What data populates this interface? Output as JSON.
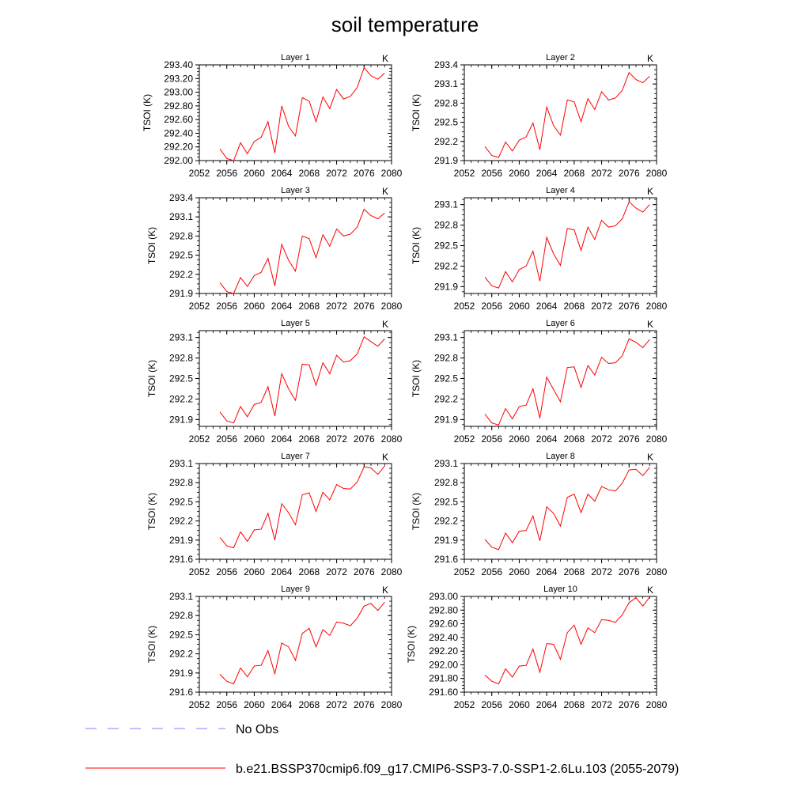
{
  "chart_data": {
    "type": "line",
    "title": "soil temperature",
    "x": [
      2055,
      2056,
      2057,
      2058,
      2059,
      2060,
      2061,
      2062,
      2063,
      2064,
      2065,
      2066,
      2067,
      2068,
      2069,
      2070,
      2071,
      2072,
      2073,
      2074,
      2075,
      2076,
      2077,
      2078,
      2079
    ],
    "xticks": [
      "2052",
      "2056",
      "2060",
      "2064",
      "2068",
      "2072",
      "2076",
      "2080"
    ],
    "xlim": [
      2052,
      2080
    ],
    "ylabel": "TSOI  (K)",
    "units": "K",
    "line_color": "#ff0000",
    "panels": [
      {
        "title": "Layer 1",
        "ylim": [
          292.0,
          293.4
        ],
        "yticks": [
          "292.00",
          "292.20",
          "292.40",
          "292.60",
          "292.80",
          "293.00",
          "293.20",
          "293.40"
        ],
        "values": [
          292.17,
          292.03,
          292.0,
          292.26,
          292.1,
          292.28,
          292.34,
          292.57,
          292.11,
          292.8,
          292.5,
          292.36,
          292.92,
          292.87,
          292.57,
          292.93,
          292.76,
          293.04,
          292.9,
          292.94,
          293.07,
          293.36,
          293.24,
          293.19,
          293.28
        ]
      },
      {
        "title": "Layer 2",
        "ylim": [
          291.9,
          293.4
        ],
        "yticks": [
          "291.9",
          "292.2",
          "292.5",
          "292.8",
          "293.1",
          "293.4"
        ],
        "values": [
          292.12,
          291.98,
          291.95,
          292.19,
          292.05,
          292.22,
          292.27,
          292.49,
          292.07,
          292.74,
          292.45,
          292.3,
          292.85,
          292.82,
          292.51,
          292.87,
          292.7,
          292.98,
          292.85,
          292.88,
          293.0,
          293.28,
          293.17,
          293.12,
          293.22
        ]
      },
      {
        "title": "Layer 3",
        "ylim": [
          291.9,
          293.4
        ],
        "yticks": [
          "291.9",
          "292.2",
          "292.5",
          "292.8",
          "293.1",
          "293.4"
        ],
        "values": [
          292.07,
          291.93,
          291.9,
          292.15,
          292.01,
          292.18,
          292.23,
          292.45,
          292.02,
          292.67,
          292.42,
          292.25,
          292.8,
          292.76,
          292.46,
          292.82,
          292.64,
          292.91,
          292.8,
          292.83,
          292.94,
          293.22,
          293.12,
          293.07,
          293.16
        ]
      },
      {
        "title": "Layer 4",
        "ylim": [
          291.8,
          293.2
        ],
        "yticks": [
          "291.9",
          "292.2",
          "292.5",
          "292.8",
          "293.1"
        ],
        "values": [
          292.04,
          291.91,
          291.88,
          292.12,
          291.97,
          292.15,
          292.2,
          292.42,
          291.98,
          292.62,
          292.38,
          292.21,
          292.75,
          292.73,
          292.43,
          292.77,
          292.59,
          292.87,
          292.77,
          292.79,
          292.89,
          293.14,
          293.05,
          292.99,
          293.1
        ]
      },
      {
        "title": "Layer 5",
        "ylim": [
          291.8,
          293.2
        ],
        "yticks": [
          "291.9",
          "292.2",
          "292.5",
          "292.8",
          "293.1"
        ],
        "values": [
          292.01,
          291.88,
          291.85,
          292.09,
          291.94,
          292.12,
          292.15,
          292.38,
          291.95,
          292.57,
          292.35,
          292.18,
          292.71,
          292.7,
          292.4,
          292.73,
          292.57,
          292.84,
          292.74,
          292.76,
          292.86,
          293.11,
          293.04,
          292.97,
          293.08
        ]
      },
      {
        "title": "Layer 6",
        "ylim": [
          291.8,
          293.2
        ],
        "yticks": [
          "291.9",
          "292.2",
          "292.5",
          "292.8",
          "293.1"
        ],
        "values": [
          291.98,
          291.85,
          291.82,
          292.06,
          291.91,
          292.09,
          292.11,
          292.35,
          291.92,
          292.52,
          292.34,
          292.16,
          292.66,
          292.67,
          292.37,
          292.69,
          292.55,
          292.81,
          292.72,
          292.73,
          292.83,
          293.08,
          293.03,
          292.95,
          293.07
        ]
      },
      {
        "title": "Layer 7",
        "ylim": [
          291.6,
          293.1
        ],
        "yticks": [
          "291.6",
          "291.9",
          "292.2",
          "292.5",
          "292.8",
          "293.1"
        ],
        "values": [
          291.94,
          291.81,
          291.78,
          292.03,
          291.88,
          292.06,
          292.07,
          292.32,
          291.9,
          292.47,
          292.33,
          292.14,
          292.61,
          292.64,
          292.35,
          292.65,
          292.53,
          292.77,
          292.71,
          292.7,
          292.81,
          293.05,
          293.03,
          292.93,
          293.06
        ]
      },
      {
        "title": "Layer 8",
        "ylim": [
          291.6,
          293.1
        ],
        "yticks": [
          "291.6",
          "291.9",
          "292.2",
          "292.5",
          "292.8",
          "293.1"
        ],
        "values": [
          291.91,
          291.79,
          291.75,
          292.01,
          291.86,
          292.04,
          292.05,
          292.28,
          291.89,
          292.42,
          292.32,
          292.12,
          292.57,
          292.62,
          292.33,
          292.62,
          292.51,
          292.74,
          292.69,
          292.67,
          292.79,
          293.0,
          293.01,
          292.91,
          293.04
        ]
      },
      {
        "title": "Layer 9",
        "ylim": [
          291.6,
          293.1
        ],
        "yticks": [
          "291.6",
          "291.9",
          "292.2",
          "292.5",
          "292.8",
          "293.1"
        ],
        "values": [
          291.88,
          291.77,
          291.73,
          291.98,
          291.84,
          292.01,
          292.02,
          292.25,
          291.89,
          292.37,
          292.31,
          292.1,
          292.52,
          292.6,
          292.31,
          292.58,
          292.49,
          292.7,
          292.68,
          292.64,
          292.76,
          292.95,
          292.99,
          292.88,
          293.01
        ]
      },
      {
        "title": "Layer 10",
        "ylim": [
          291.6,
          293.0
        ],
        "yticks": [
          "291.60",
          "291.80",
          "292.00",
          "292.20",
          "292.40",
          "292.60",
          "292.80",
          "293.00"
        ],
        "values": [
          291.85,
          291.76,
          291.72,
          291.94,
          291.82,
          291.98,
          291.99,
          292.23,
          291.89,
          292.31,
          292.3,
          292.08,
          292.47,
          292.58,
          292.3,
          292.54,
          292.47,
          292.66,
          292.65,
          292.62,
          292.73,
          292.91,
          292.98,
          292.86,
          292.99
        ]
      }
    ],
    "legend": [
      {
        "label": "No Obs",
        "color": "#8080ff",
        "style": "dashed"
      },
      {
        "label": "b.e21.BSSP370cmip6.f09_g17.CMIP6-SSP3-7.0-SSP1-2.6Lu.103 (2055-2079)",
        "color": "#ff0000",
        "style": "solid"
      }
    ],
    "legend_placement": "bottom",
    "grid": false
  }
}
